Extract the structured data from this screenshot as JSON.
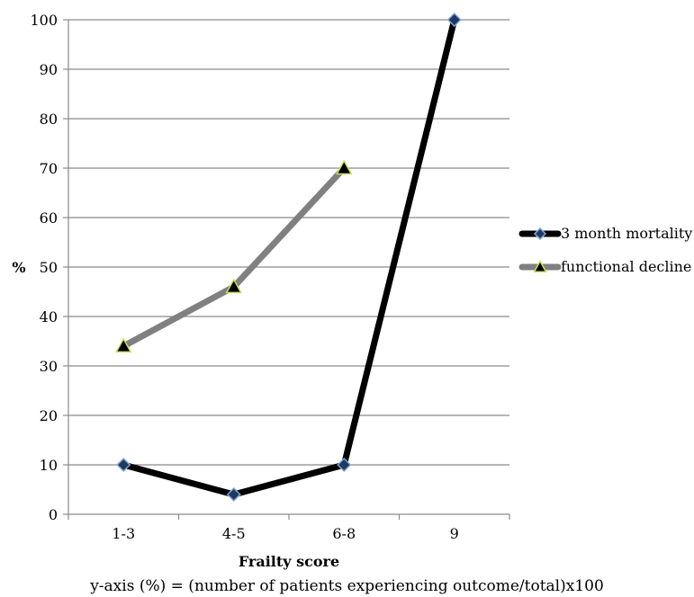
{
  "chart_data": {
    "type": "line",
    "categories": [
      "1-3",
      "4-5",
      "6-8",
      "9"
    ],
    "series": [
      {
        "name": "3 month mortality",
        "values": [
          10,
          4,
          10,
          100
        ],
        "color": "#000000",
        "marker": "diamond",
        "marker_fill": "#1f3a5f",
        "marker_edge": "#7da7d9"
      },
      {
        "name": "functional decline",
        "values": [
          34,
          46,
          70,
          null
        ],
        "color": "#808080",
        "marker": "triangle",
        "marker_fill": "#000000",
        "marker_edge": "#c8e05a"
      }
    ],
    "xlabel": "Frailty score",
    "ylabel": "%",
    "ylim": [
      0,
      100
    ],
    "yticks": [
      0,
      10,
      20,
      30,
      40,
      50,
      60,
      70,
      80,
      90,
      100
    ],
    "grid": true,
    "legend": "right"
  },
  "footnote": "y-axis (%) = (number of patients experiencing outcome/total)x100"
}
